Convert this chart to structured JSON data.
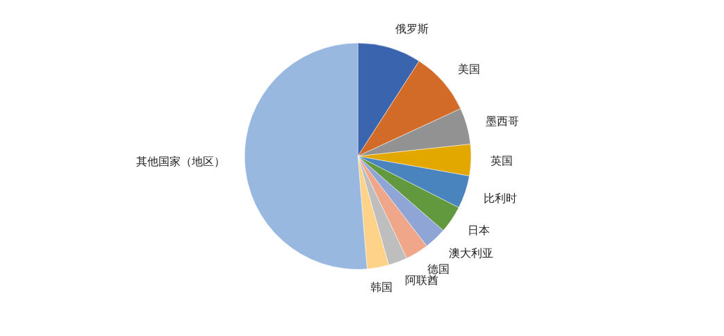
{
  "chart_data": {
    "type": "pie",
    "categories": [
      "俄罗斯",
      "美国",
      "墨西哥",
      "英国",
      "比利时",
      "日本",
      "澳大利亚",
      "德国",
      "阿联酋",
      "韩国",
      "其他国家（地区）"
    ],
    "values": [
      9.1,
      9.0,
      5.2,
      4.5,
      4.7,
      3.9,
      3.2,
      3.3,
      2.7,
      3.1,
      51.3
    ],
    "colors": [
      "#3a64ad",
      "#d36b28",
      "#929292",
      "#e3a800",
      "#4a84bf",
      "#62993e",
      "#8ea5d6",
      "#f0a688",
      "#bebebe",
      "#ffd28a",
      "#98b8df"
    ]
  }
}
